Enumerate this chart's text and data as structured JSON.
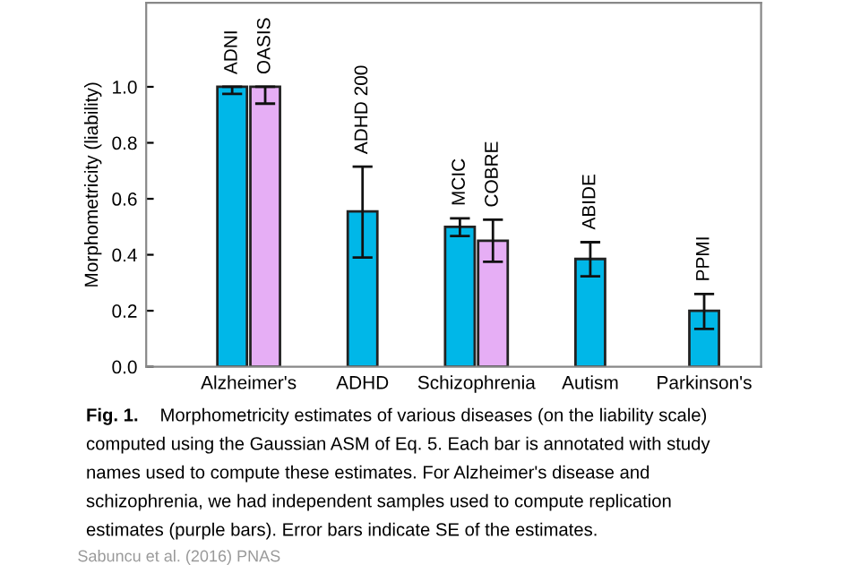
{
  "chart_data": {
    "type": "bar",
    "ylabel": "Morphometricity (liability)",
    "categories": [
      "Alzheimer's",
      "ADHD",
      "Schizophrenia",
      "Autism",
      "Parkinson's"
    ],
    "series": [
      {
        "color": "#00b7e8",
        "values": [
          1.0,
          0.555,
          0.5,
          0.385,
          0.2
        ],
        "errors": [
          [
            0.975,
            1.0
          ],
          [
            0.39,
            0.715
          ],
          [
            0.467,
            0.53
          ],
          [
            0.323,
            0.445
          ],
          [
            0.135,
            0.26
          ]
        ],
        "value_labels": [
          "ADNI",
          "ADHD 200",
          "MCIC",
          "ABIDE",
          "PPMI"
        ]
      },
      {
        "color": "#e6aef5",
        "values": [
          1.0,
          null,
          0.45,
          null,
          null
        ],
        "errors": [
          [
            0.94,
            1.0
          ],
          null,
          [
            0.375,
            0.525
          ],
          null,
          null
        ],
        "value_labels": [
          "OASIS",
          null,
          "COBRE",
          null,
          null
        ]
      }
    ],
    "ylim": [
      0,
      1.3
    ],
    "yticks": [
      {
        "value": 0,
        "label": "0.0"
      },
      {
        "value": 0.2,
        "label": "0.2"
      },
      {
        "value": 0.4,
        "label": "0.4"
      },
      {
        "value": 0.6,
        "label": "0.6"
      },
      {
        "value": 0.8,
        "label": "0.8"
      },
      {
        "value": 1.0,
        "label": "1.0"
      }
    ],
    "grid": false,
    "annotations": [
      "Fig. 1.",
      "Morphometricity estimates of various diseases (on the liability scale)\ncomputed using the Gaussian ASM of Eq. 5. Each bar is annotated with study\nnames used to compute these estimates. For Alzheimer's disease and\nschizophrenia, we had independent samples used to compute replication\nestimates (purple bars). Error bars indicate SE of the estimates.",
      "Sabuncu et al. (2016) PNAS"
    ]
  }
}
